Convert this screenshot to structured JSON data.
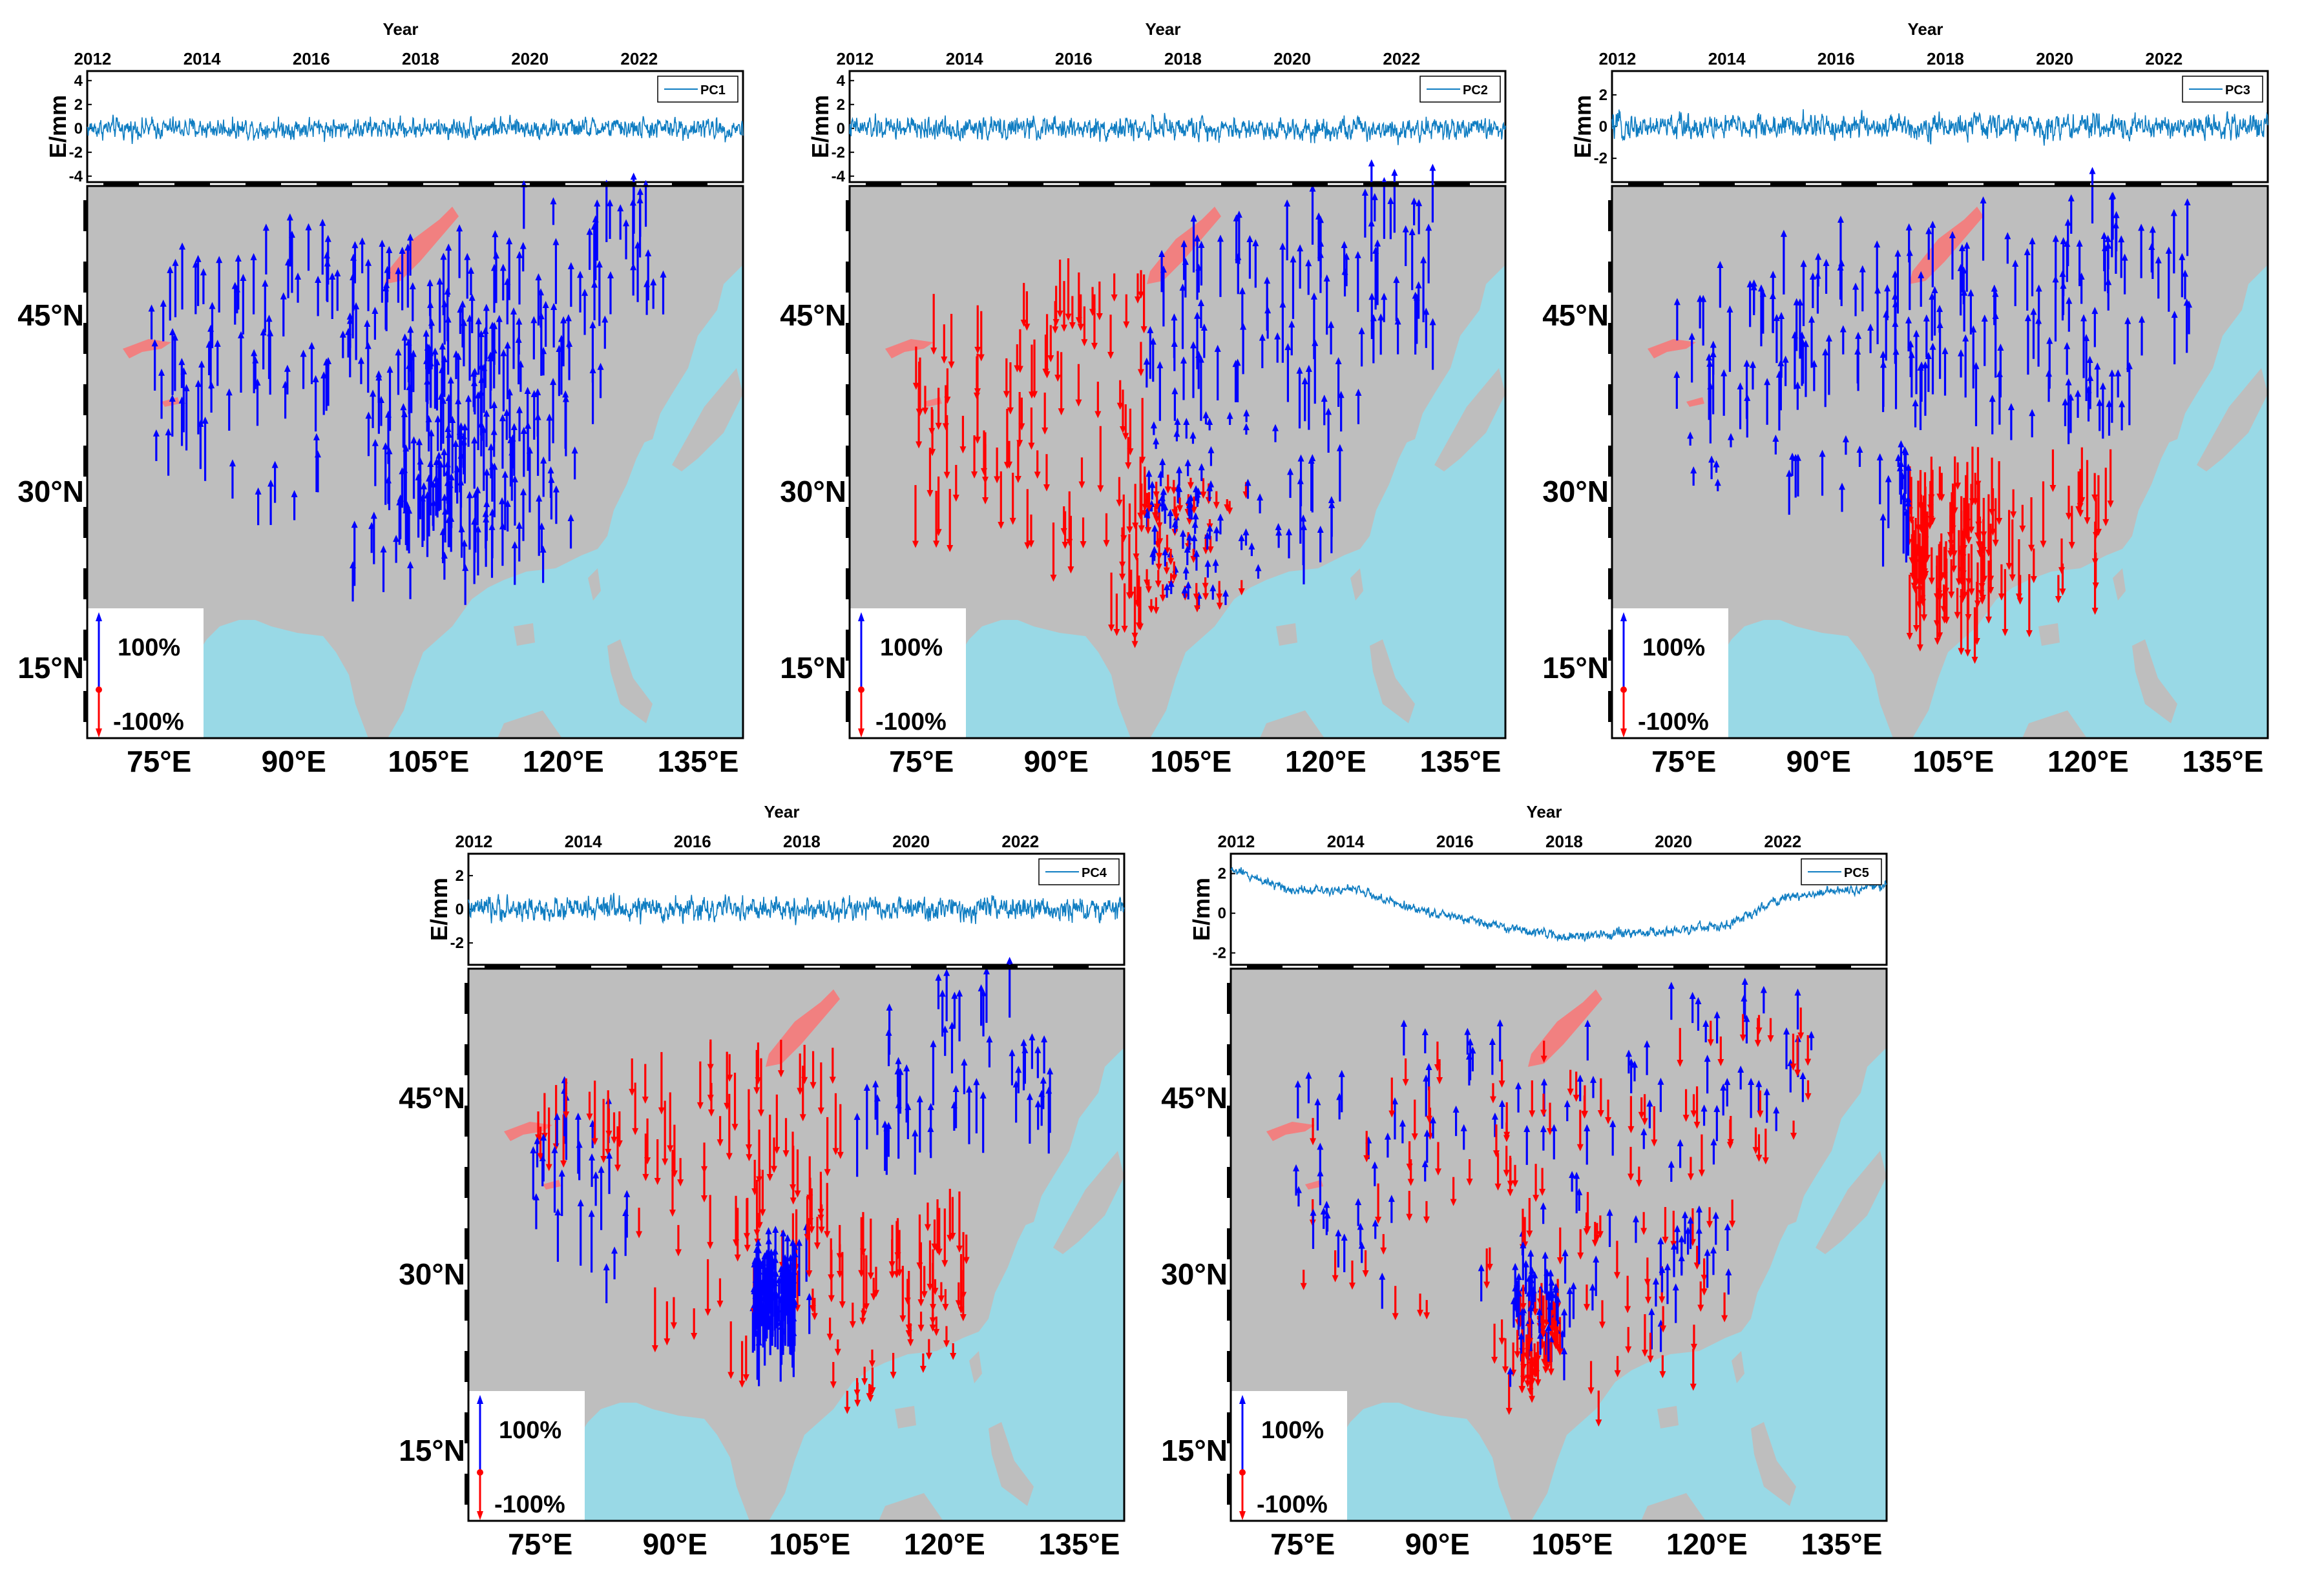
{
  "chart_data": [
    {
      "type": "line",
      "title": "PC1",
      "series_name": "PC1",
      "xlabel": "Year",
      "ylabel": "E/mm",
      "x_ticks": [
        "2012",
        "2014",
        "2016",
        "2018",
        "2020",
        "2022"
      ],
      "xlim": [
        2011.9,
        2023.9
      ],
      "y_ticks": [
        "-4",
        "-2",
        "0",
        "2",
        "4"
      ],
      "ylim": [
        -4.5,
        4.8
      ],
      "noise_amp": 1.1,
      "trend": [
        [
          2011.9,
          0
        ],
        [
          2023.9,
          0
        ]
      ],
      "map": {
        "lat_ticks": [
          "15°N",
          "30°N",
          "45°N"
        ],
        "lon_ticks": [
          "75°E",
          "90°E",
          "105°E",
          "120°E",
          "135°E"
        ],
        "legend": {
          "pos": "100%",
          "neg": "-100%"
        },
        "mode": "all_pos",
        "cluster": [
          108,
          32,
          1.6,
          18
        ],
        "rows": 20
      }
    },
    {
      "type": "line",
      "title": "PC2",
      "series_name": "PC2",
      "xlabel": "Year",
      "ylabel": "E/mm",
      "x_ticks": [
        "2012",
        "2014",
        "2016",
        "2018",
        "2020",
        "2022"
      ],
      "xlim": [
        2011.9,
        2023.9
      ],
      "y_ticks": [
        "-4",
        "-2",
        "0",
        "2",
        "4"
      ],
      "ylim": [
        -4.5,
        4.8
      ],
      "noise_amp": 1.2,
      "trend": [
        [
          2011.9,
          0
        ],
        [
          2023.9,
          0
        ]
      ],
      "map": {
        "lat_ticks": [
          "15°N",
          "30°N",
          "45°N"
        ],
        "lon_ticks": [
          "75°E",
          "90°E",
          "105°E",
          "120°E",
          "135°E"
        ],
        "legend": {
          "pos": "100%",
          "neg": "-100%"
        },
        "mode": "west_neg",
        "cluster": [
          103,
          26,
          1.3,
          11
        ],
        "rows": 20
      }
    },
    {
      "type": "line",
      "title": "PC3",
      "series_name": "PC3",
      "xlabel": "Year",
      "ylabel": "E/mm",
      "x_ticks": [
        "2012",
        "2014",
        "2016",
        "2018",
        "2020",
        "2022"
      ],
      "xlim": [
        2011.9,
        2023.9
      ],
      "y_ticks": [
        "-2",
        "0",
        "2"
      ],
      "ylim": [
        -3.5,
        3.5
      ],
      "noise_amp": 1.0,
      "trend": [
        [
          2011.9,
          0
        ],
        [
          2023.9,
          0
        ]
      ],
      "map": {
        "lat_ticks": [
          "15°N",
          "30°N",
          "45°N"
        ],
        "lon_ticks": [
          "75°E",
          "90°E",
          "105°E",
          "120°E",
          "135°E"
        ],
        "legend": {
          "pos": "100%",
          "neg": "-100%"
        },
        "mode": "north_pos",
        "cluster": [
          104,
          27,
          1.3,
          11
        ],
        "rows": 20
      }
    },
    {
      "type": "line",
      "title": "PC4",
      "series_name": "PC4",
      "xlabel": "Year",
      "ylabel": "E/mm",
      "x_ticks": [
        "2012",
        "2014",
        "2016",
        "2018",
        "2020",
        "2022"
      ],
      "xlim": [
        2011.9,
        2023.9
      ],
      "y_ticks": [
        "-2",
        "0",
        "2"
      ],
      "ylim": [
        -3.3,
        3.3
      ],
      "noise_amp": 0.9,
      "trend": [
        [
          2011.9,
          0
        ],
        [
          2023.9,
          0
        ]
      ],
      "map": {
        "lat_ticks": [
          "15°N",
          "30°N",
          "45°N"
        ],
        "lon_ticks": [
          "75°E",
          "90°E",
          "105°E",
          "120°E",
          "135°E"
        ],
        "legend": {
          "pos": "100%",
          "neg": "-100%"
        },
        "mode": "mixed4",
        "cluster": [
          101,
          26,
          0.6,
          6
        ],
        "rows": 20
      }
    },
    {
      "type": "line",
      "title": "PC5",
      "series_name": "PC5",
      "xlabel": "Year",
      "ylabel": "E/mm",
      "x_ticks": [
        "2012",
        "2014",
        "2016",
        "2018",
        "2020",
        "2022"
      ],
      "xlim": [
        2011.9,
        2023.9
      ],
      "y_ticks": [
        "-2",
        "0",
        "2"
      ],
      "ylim": [
        -2.6,
        3.0
      ],
      "noise_amp": 0.3,
      "trend": [
        [
          2011.9,
          2.2
        ],
        [
          2013,
          1.2
        ],
        [
          2014.2,
          1.2
        ],
        [
          2015,
          0.4
        ],
        [
          2016.5,
          -0.5
        ],
        [
          2018,
          -1.2
        ],
        [
          2020,
          -0.9
        ],
        [
          2021,
          -0.6
        ],
        [
          2022,
          0.8
        ],
        [
          2023.9,
          1.4
        ]
      ],
      "map": {
        "lat_ticks": [
          "15°N",
          "30°N",
          "45°N"
        ],
        "lon_ticks": [
          "75°E",
          "90°E",
          "105°E",
          "120°E",
          "135°E"
        ],
        "legend": {
          "pos": "100%",
          "neg": "-100%"
        },
        "mode": "random",
        "cluster": [
          101,
          26,
          0.6,
          7
        ],
        "rows": 20
      }
    }
  ],
  "colors": {
    "line": "#0f7dc2",
    "land": "#bebebe",
    "sea": "#99d9e6",
    "lake": "#f18080",
    "pos": "#0000ff",
    "neg": "#ff0000"
  }
}
